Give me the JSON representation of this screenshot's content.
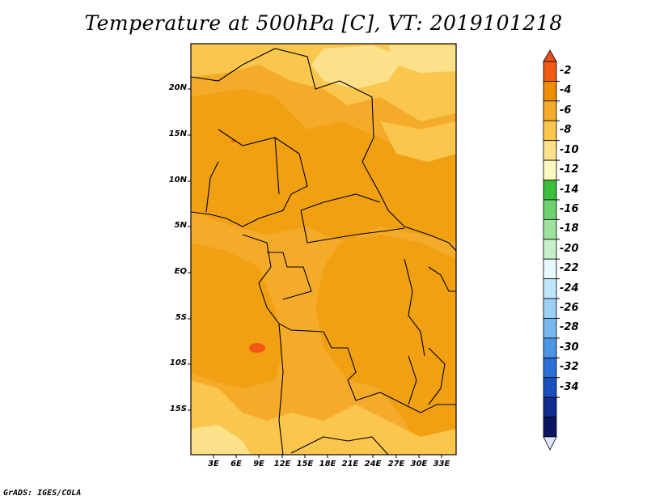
{
  "title": "Temperature at 500hPa [C], VT: 2019101218",
  "footer": "GrADS: IGES/COLA",
  "y_ticks": [
    "20N",
    "15N",
    "10N",
    "5N",
    "EQ",
    "5S",
    "10S",
    "15S"
  ],
  "x_ticks": [
    "3E",
    "6E",
    "9E",
    "12E",
    "15E",
    "18E",
    "21E",
    "24E",
    "27E",
    "30E",
    "33E"
  ],
  "colorbar": {
    "labels": [
      "-2",
      "-4",
      "-6",
      "-8",
      "-10",
      "-12",
      "-14",
      "-16",
      "-18",
      "-20",
      "-22",
      "-24",
      "-26",
      "-28",
      "-30",
      "-32",
      "-34"
    ],
    "colors": [
      "#f05a14",
      "#f08c00",
      "#f5ab2a",
      "#fac64e",
      "#fde18a",
      "#fff7c0",
      "#3cbf3c",
      "#6ed26e",
      "#9de39d",
      "#c8f0c8",
      "#e8f8ff",
      "#bfe6fb",
      "#9dd0f5",
      "#78b7ef",
      "#4c94e6",
      "#2b6ed8",
      "#1850c0",
      "#0f2c8e",
      "#0a1460"
    ],
    "top_arrow_color": "#e8501a",
    "bottom_arrow_color": "#dfe6ff"
  },
  "map": {
    "region": "Central Africa",
    "lon_range": [
      0,
      35
    ],
    "lat_range": [
      -20,
      24
    ],
    "base_color": "#f5ab2a",
    "warm_patch_color": "#f0a010",
    "cool_patch_color": "#fac64e",
    "coldest_patch_color": "#fde18a",
    "hot_spot_color": "#f05a14"
  }
}
